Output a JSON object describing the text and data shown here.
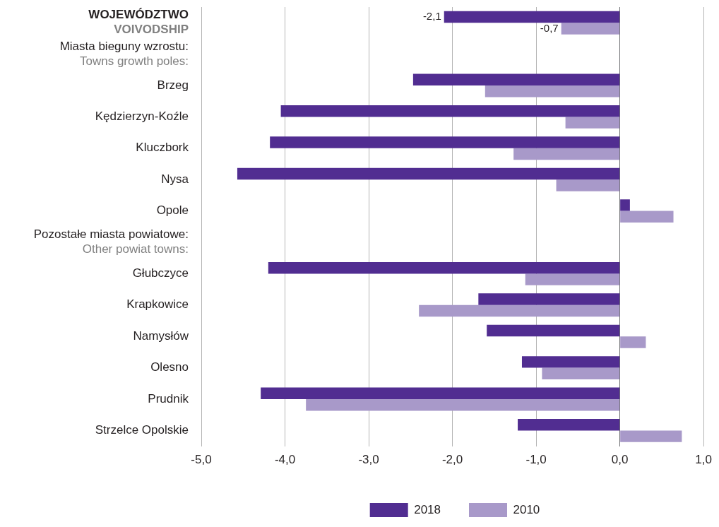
{
  "chart_data": {
    "type": "bar",
    "orientation": "horizontal",
    "categories": [
      "WOJEWÓDZTWO\nVOIVODSHIP",
      null,
      "Brzeg",
      "Kędzierzyn-Koźle",
      "Kluczbork",
      "Nysa",
      "Opole",
      null,
      "Głubczyce",
      "Krapkowice",
      "Namysłów",
      "Olesno",
      "Prudnik",
      "Strzelce Opolskie"
    ],
    "series": [
      {
        "name": "2018",
        "color": "#512d91",
        "values": [
          -2.1,
          null,
          -2.47,
          -4.05,
          -4.18,
          -4.57,
          0.12,
          null,
          -4.2,
          -1.69,
          -1.59,
          -1.17,
          -4.29,
          -1.22
        ],
        "value_labels": [
          "-2,1",
          null,
          null,
          null,
          null,
          null,
          null,
          null,
          null,
          null,
          null,
          null,
          null,
          null
        ]
      },
      {
        "name": "2010",
        "color": "#a899c9",
        "values": [
          -0.7,
          null,
          -1.61,
          -0.65,
          -1.27,
          -0.76,
          0.64,
          null,
          -1.13,
          -2.4,
          0.31,
          -0.93,
          -3.75,
          0.74
        ],
        "value_labels": [
          "-0,7",
          null,
          null,
          null,
          null,
          null,
          null,
          null,
          null,
          null,
          null,
          null,
          null,
          null
        ]
      }
    ],
    "xlim": [
      -5,
      1
    ],
    "xticks": [
      {
        "value": -5,
        "label": "-5,0"
      },
      {
        "value": -4,
        "label": "-4,0"
      },
      {
        "value": -3,
        "label": "-3,0"
      },
      {
        "value": -2,
        "label": "-2,0"
      },
      {
        "value": -1,
        "label": "-1,0"
      },
      {
        "value": 0,
        "label": "0,0"
      },
      {
        "value": 1,
        "label": "1,0"
      }
    ],
    "annotations": [
      "Miasta bieguny wzrostu:\nTowns growth poles:",
      "Pozostałe miasta powiatowe:\nOther powiat towns:"
    ],
    "grid": "x",
    "legend": "bottom"
  }
}
